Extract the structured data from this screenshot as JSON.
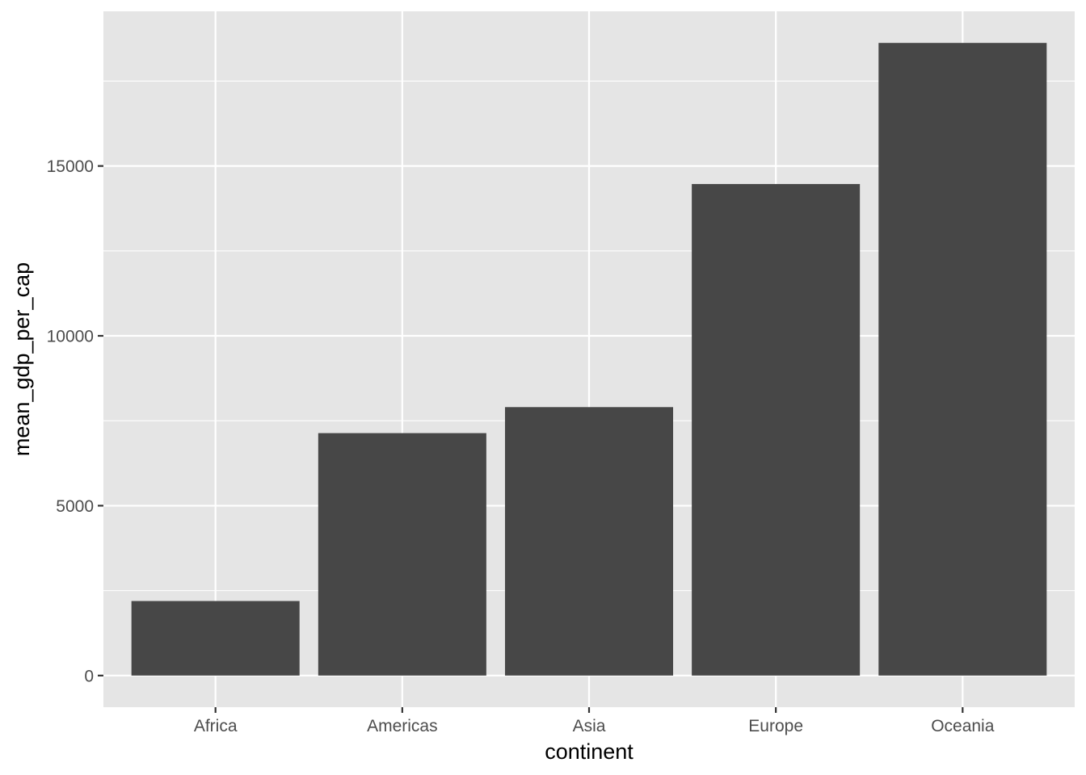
{
  "chart_data": {
    "type": "bar",
    "categories": [
      "Africa",
      "Americas",
      "Asia",
      "Europe",
      "Oceania"
    ],
    "values": [
      2194,
      7136,
      7902,
      14469,
      18622
    ],
    "xlabel": "continent",
    "ylabel": "mean_gdp_per_cap",
    "ylim": [
      -931,
      19553
    ],
    "yticks": [
      0,
      5000,
      10000,
      15000
    ],
    "grid": true,
    "legend": "none",
    "colors": {
      "panel_background": "#e5e5e5",
      "grid": "#ffffff",
      "bar_fill": "#474747",
      "tick_label": "#4d4d4d",
      "tick_mark": "#333333",
      "axis_title": "#000000"
    }
  }
}
